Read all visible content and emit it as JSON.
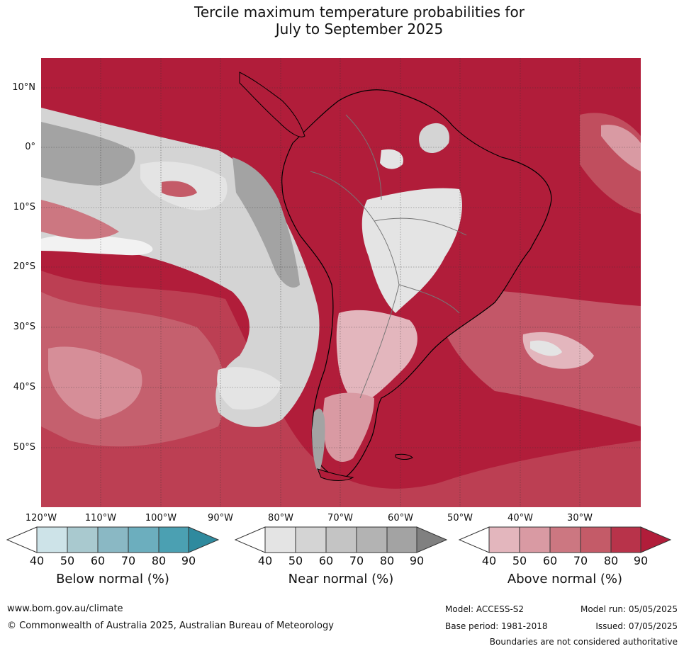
{
  "title": {
    "line1": "Tercile maximum temperature probabilities for",
    "line2": "July to September 2025"
  },
  "map": {
    "lat_labels": [
      "10°N",
      "0°",
      "10°S",
      "20°S",
      "30°S",
      "40°S",
      "50°S"
    ],
    "lon_labels": [
      "120°W",
      "110°W",
      "100°W",
      "90°W",
      "80°W",
      "70°W",
      "60°W",
      "50°W",
      "40°W",
      "30°W"
    ],
    "extent": {
      "lon_min": -120,
      "lon_max": -20,
      "lat_min": -60,
      "lat_max": 15
    },
    "dominant_category": "Above normal",
    "graticule": true
  },
  "colorbars": [
    {
      "title": "Below normal (%)",
      "ticks": [
        "40",
        "50",
        "60",
        "70",
        "80",
        "90"
      ],
      "colors": [
        "#ffffff",
        "#cde3e8",
        "#a9c9cf",
        "#8ab8c4",
        "#6caebe",
        "#4ba0b2",
        "#2f8a9e"
      ]
    },
    {
      "title": "Near normal (%)",
      "ticks": [
        "40",
        "50",
        "60",
        "70",
        "80",
        "90"
      ],
      "colors": [
        "#ffffff",
        "#e4e4e4",
        "#d4d4d4",
        "#c4c4c4",
        "#b3b3b3",
        "#a3a3a3",
        "#808080"
      ]
    },
    {
      "title": "Above normal (%)",
      "ticks": [
        "40",
        "50",
        "60",
        "70",
        "80",
        "90"
      ],
      "colors": [
        "#ffffff",
        "#e3b6bd",
        "#d99aa3",
        "#cc7781",
        "#c45b68",
        "#b8334a",
        "#b11d3a"
      ]
    }
  ],
  "footer": {
    "website": "www.bom.gov.au/climate",
    "copyright": "© Commonwealth of Australia 2025, Australian Bureau of Meteorology",
    "model": "Model: ACCESS-S2",
    "base_period": "Base period: 1981-2018",
    "model_run": "Model run: 05/05/2025",
    "issued": "Issued: 07/05/2025",
    "disclaimer": "Boundaries are not considered authoritative"
  }
}
